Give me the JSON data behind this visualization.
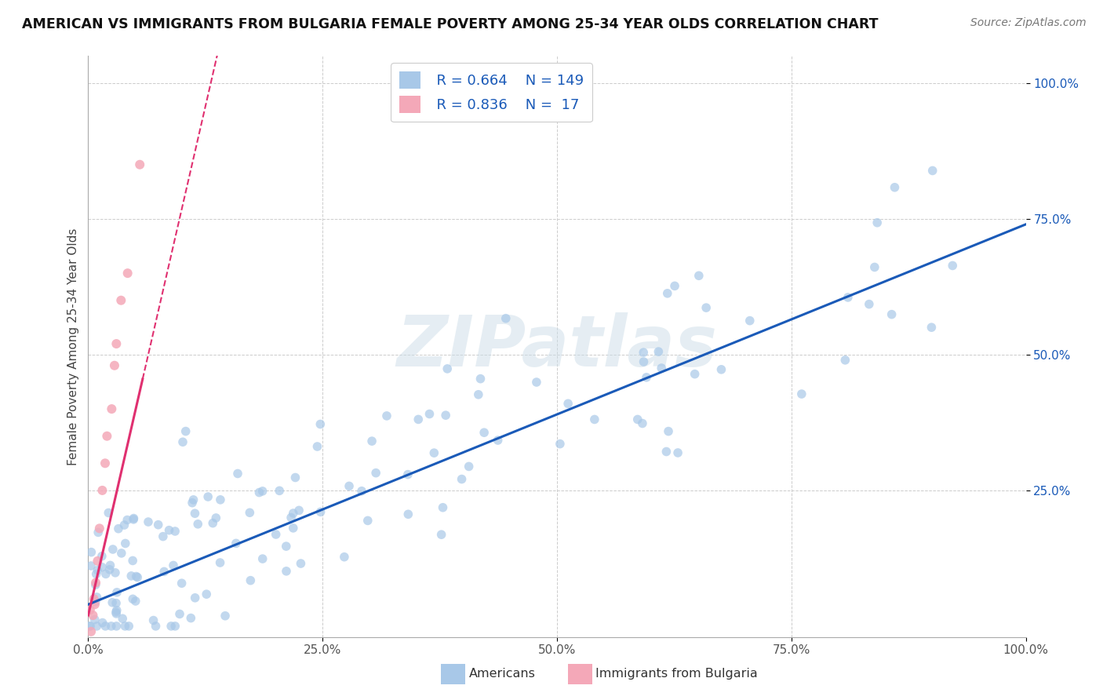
{
  "title": "AMERICAN VS IMMIGRANTS FROM BULGARIA FEMALE POVERTY AMONG 25-34 YEAR OLDS CORRELATION CHART",
  "source": "Source: ZipAtlas.com",
  "ylabel": "Female Poverty Among 25-34 Year Olds",
  "xlim": [
    0,
    1.0
  ],
  "ylim": [
    -0.02,
    1.05
  ],
  "xticks": [
    0.0,
    0.25,
    0.5,
    0.75,
    1.0
  ],
  "xtick_labels": [
    "0.0%",
    "25.0%",
    "50.0%",
    "75.0%",
    "100.0%"
  ],
  "ytick_labels": [
    "25.0%",
    "50.0%",
    "75.0%",
    "100.0%"
  ],
  "yticks": [
    0.25,
    0.5,
    0.75,
    1.0
  ],
  "legend_r_american": "0.664",
  "legend_n_american": "149",
  "legend_r_bulgaria": "0.836",
  "legend_n_bulgaria": " 17",
  "american_color": "#a8c8e8",
  "bulgaria_color": "#f4a8b8",
  "american_line_color": "#1a5ab8",
  "bulgaria_line_color": "#e03070",
  "background_color": "#ffffff",
  "watermark": "ZIPatlas",
  "american_N": 149,
  "bulgaria_N": 17,
  "american_slope": 0.7,
  "american_intercept": 0.04,
  "bulgaria_slope": 7.5,
  "bulgaria_intercept": 0.02
}
